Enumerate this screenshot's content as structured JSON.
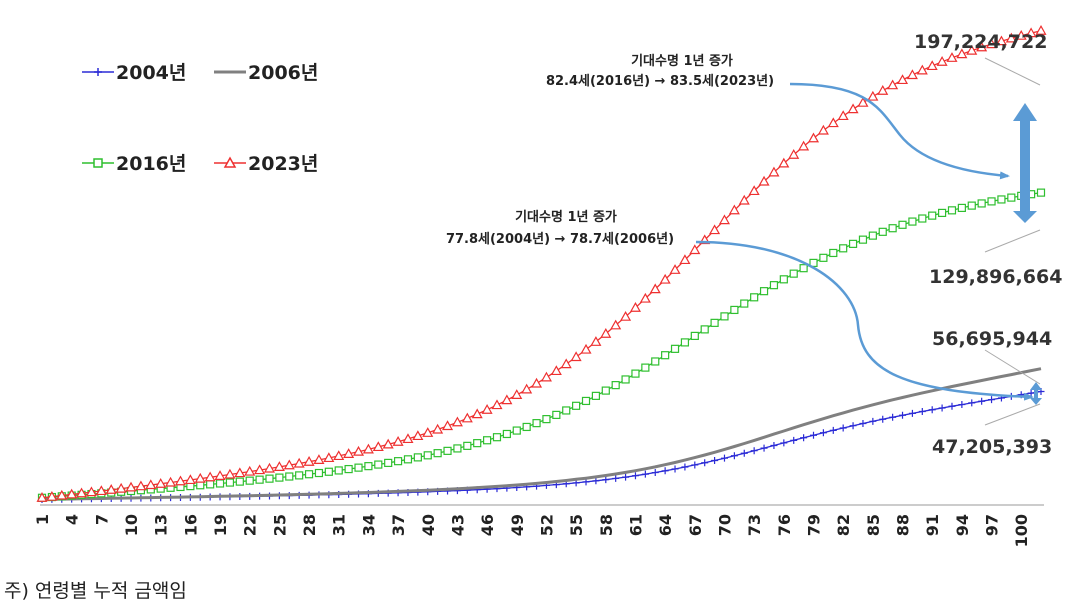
{
  "chart_data": {
    "type": "line",
    "title": "",
    "xlabel": "",
    "ylabel": "",
    "x": "ages 1 to 102",
    "xticks": [
      "1",
      "4",
      "7",
      "10",
      "13",
      "16",
      "19",
      "22",
      "25",
      "28",
      "31",
      "34",
      "37",
      "40",
      "43",
      "46",
      "49",
      "52",
      "55",
      "58",
      "61",
      "64",
      "67",
      "70",
      "73",
      "76",
      "79",
      "82",
      "85",
      "88",
      "91",
      "94",
      "97",
      "100"
    ],
    "ylim": [
      0,
      210000000
    ],
    "series": [
      {
        "name": "2004년",
        "color": "#2b2bd6",
        "marker": "plus",
        "final_value": 47205393
      },
      {
        "name": "2006년",
        "color": "#808080",
        "marker": "none",
        "final_value": 56695944
      },
      {
        "name": "2016년",
        "color": "#2fbf2f",
        "marker": "square",
        "final_value": 129896664
      },
      {
        "name": "2023년",
        "color": "#ee3030",
        "marker": "triangle",
        "final_value": 197224722
      }
    ],
    "annotations": [
      {
        "line1": "기대수명 1년 증가",
        "line2": "82.4세(2016년) → 83.5세(2023년)"
      },
      {
        "line1": "기대수명 1년 증가",
        "line2": "77.8세(2004년) → 78.7세(2006년)"
      }
    ],
    "end_labels": [
      "197,224,722",
      "129,896,664",
      "56,695,944",
      "47,205,393"
    ]
  },
  "legend": [
    "2004년",
    "2006년",
    "2016년",
    "2023년"
  ],
  "footnote": "주) 연령별 누적 금액임",
  "colors": {
    "blue": "#2b2bd6",
    "gray": "#808080",
    "green": "#2fbf2f",
    "red": "#ee3030",
    "arrow": "#5b9bd5"
  }
}
